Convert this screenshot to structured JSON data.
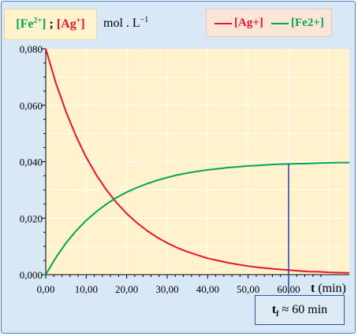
{
  "header": {
    "species_fe": "Fe",
    "species_fe_charge": "2+",
    "separator": " ; ",
    "species_ag": "Ag",
    "species_ag_charge": "+",
    "unit": "mol . L",
    "unit_exp": "−1"
  },
  "legend": {
    "items": [
      {
        "label": "[Ag+]",
        "color": "#e8132d"
      },
      {
        "label": "[Fe2+]",
        "color": "#00a651"
      }
    ]
  },
  "annotation": {
    "prefix": "t",
    "subscript": "f",
    "text": " ≈ 60 min"
  },
  "colors": {
    "plot_background": "#fff2cc",
    "frame": "#d9e8f7",
    "marker_line": "#1f3fbf",
    "grid": "#ffffff"
  },
  "chart_data": {
    "type": "line",
    "xlabel_main": "t",
    "xlabel_unit": "(min)",
    "xlim": [
      0,
      75
    ],
    "ylim": [
      0,
      0.08
    ],
    "x_ticks": [
      "0,00",
      "10,00",
      "20,00",
      "30,00",
      "40,00",
      "50,00",
      "60,00"
    ],
    "y_ticks": [
      "0,000",
      "0,020",
      "0,040",
      "0,060",
      "0,080"
    ],
    "grid": true,
    "legend_position": "top-right",
    "marker_x": 60,
    "series": [
      {
        "name": "[Ag+]",
        "color": "#e8132d",
        "x": [
          0,
          2.5,
          5,
          7.5,
          10,
          12.5,
          15,
          17.5,
          20,
          22.5,
          25,
          27.5,
          30,
          32.5,
          35,
          37.5,
          40,
          42.5,
          45,
          47.5,
          50,
          52.5,
          55,
          57.5,
          60,
          62.5,
          65,
          67.5,
          70,
          72.5,
          75
        ],
        "y": [
          0.08,
          0.0679,
          0.0577,
          0.049,
          0.0416,
          0.0353,
          0.03,
          0.0255,
          0.0216,
          0.0184,
          0.0156,
          0.0132,
          0.0112,
          0.0095,
          0.0081,
          0.0069,
          0.0058,
          0.005,
          0.0042,
          0.0036,
          0.003,
          0.0026,
          0.0022,
          0.0019,
          0.0016,
          0.0013,
          0.0011,
          0.001,
          0.0008,
          0.0007,
          0.0006
        ]
      },
      {
        "name": "[Fe2+]",
        "color": "#00a651",
        "x": [
          0,
          2.5,
          5,
          7.5,
          10,
          12.5,
          15,
          17.5,
          20,
          22.5,
          25,
          27.5,
          30,
          32.5,
          35,
          37.5,
          40,
          42.5,
          45,
          47.5,
          50,
          52.5,
          55,
          57.5,
          60,
          62.5,
          65,
          67.5,
          70,
          72.5,
          75
        ],
        "y": [
          0,
          0.006,
          0.0112,
          0.0155,
          0.0192,
          0.0223,
          0.025,
          0.0273,
          0.0292,
          0.0308,
          0.0322,
          0.0334,
          0.0344,
          0.0353,
          0.036,
          0.0366,
          0.0371,
          0.0375,
          0.0379,
          0.0382,
          0.0385,
          0.0387,
          0.0389,
          0.0391,
          0.0392,
          0.0393,
          0.0394,
          0.0395,
          0.0396,
          0.0397,
          0.0397
        ]
      }
    ]
  }
}
